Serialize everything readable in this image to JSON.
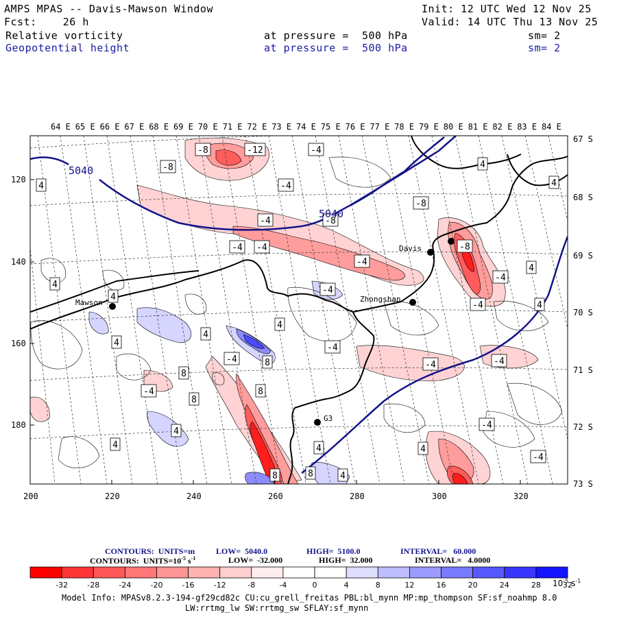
{
  "header": {
    "model": "AMPS MPAS -- Davis-Mawson Window",
    "init": "Init: 12 UTC Wed 12 Nov 25",
    "forecast": "Fcst:    26 h",
    "valid": "Valid: 14 UTC Thu 13 Nov 25",
    "field1": {
      "name": "Relative vorticity",
      "level": "at pressure =  500 hPa",
      "smooth": "sm= 2"
    },
    "field2": {
      "name": "Geopotential height",
      "level": "at pressure =  500 hPa",
      "smooth": "sm= 2"
    }
  },
  "map": {
    "top_lon_labels": [
      "64 E",
      "65 E",
      "66 E",
      "67 E",
      "68 E",
      "69 E",
      "70 E",
      "71 E",
      "72 E",
      "73 E",
      "74 E",
      "75 E",
      "76 E",
      "77 E",
      "78 E",
      "79 E",
      "80 E",
      "81 E",
      "82 E",
      "83 E",
      "84 E"
    ],
    "right_lat_labels": [
      "67 S",
      "68 S",
      "69 S",
      "70 S",
      "71 S",
      "72 S",
      "73 S"
    ],
    "x_ticks": [
      "200",
      "220",
      "240",
      "260",
      "280",
      "300",
      "320"
    ],
    "y_ticks": [
      "120",
      "140",
      "160",
      "180"
    ],
    "stations": [
      {
        "name": "Mawson"
      },
      {
        "name": "Davis"
      },
      {
        "name": "Zhongshan"
      },
      {
        "name": "G3"
      },
      {
        "name": ""
      }
    ],
    "height_contour_labels": [
      "5040",
      "5040"
    ],
    "vorticity_labels": [
      "-8",
      "-12",
      "-4",
      "4",
      "-8",
      "4",
      "-4",
      "4",
      "-4",
      "-8",
      "-8",
      "-4",
      "-4",
      "-4",
      "-8",
      "-4",
      "4",
      "4",
      "4",
      "-4",
      "4",
      "-4",
      "4",
      "4",
      "-4",
      "-4",
      "4",
      "8",
      "-4",
      "-4",
      "8",
      "-4",
      "8",
      "8",
      "4",
      "-4",
      "4",
      "4",
      "4",
      "-4",
      "4",
      "8",
      "8",
      "4",
      "-4",
      "-4",
      "4",
      "4",
      "-8",
      "-4",
      "-4",
      "4",
      "4",
      "-4",
      "4"
    ],
    "colors": {
      "height_contour": "#13138a",
      "coast": "#000000",
      "grid": "#444444"
    }
  },
  "legend": {
    "line1": {
      "contours": "CONTOURS:  UNITS=m",
      "low": "LOW=  5040.0",
      "high": "HIGH=  5100.0",
      "interval": "INTERVAL=   60.000"
    },
    "line2": {
      "contours": "CONTOURS:  UNITS=10",
      "exp": "-5",
      "units_tail": " s",
      "exp2": "-1",
      "low": "LOW=  -32.000",
      "high": "HIGH=  32.000",
      "interval": "INTERVAL=   4.0000"
    },
    "ticks": [
      "-32",
      "-28",
      "-24",
      "-20",
      "-16",
      "-12",
      "-8",
      "-4",
      "0",
      "4",
      "8",
      "12",
      "16",
      "20",
      "24",
      "28",
      "32"
    ],
    "units": "10",
    "units_exp": "-5",
    "units_s": " s",
    "units_s_exp": "-1",
    "colors": [
      "#ff0000",
      "#ff3535",
      "#ff5858",
      "#ff7676",
      "#ff9494",
      "#ffb1b1",
      "#ffcfcf",
      "#ffeded",
      "#ffffff",
      "#ffffff",
      "#dedeff",
      "#bdbdff",
      "#9b9bff",
      "#7a7aff",
      "#5858ff",
      "#3737ff",
      "#1414ff"
    ]
  },
  "footer": {
    "line1": "Model Info: MPASv8.2.3-194-gf29cd82c CU:cu_grell_freitas PBL:bl_mynn MP:mp_thompson SF:sf_noahmp 8.0",
    "line2": "LW:rrtmg_lw SW:rrtmg_sw SFLAY:sf_mynn"
  }
}
